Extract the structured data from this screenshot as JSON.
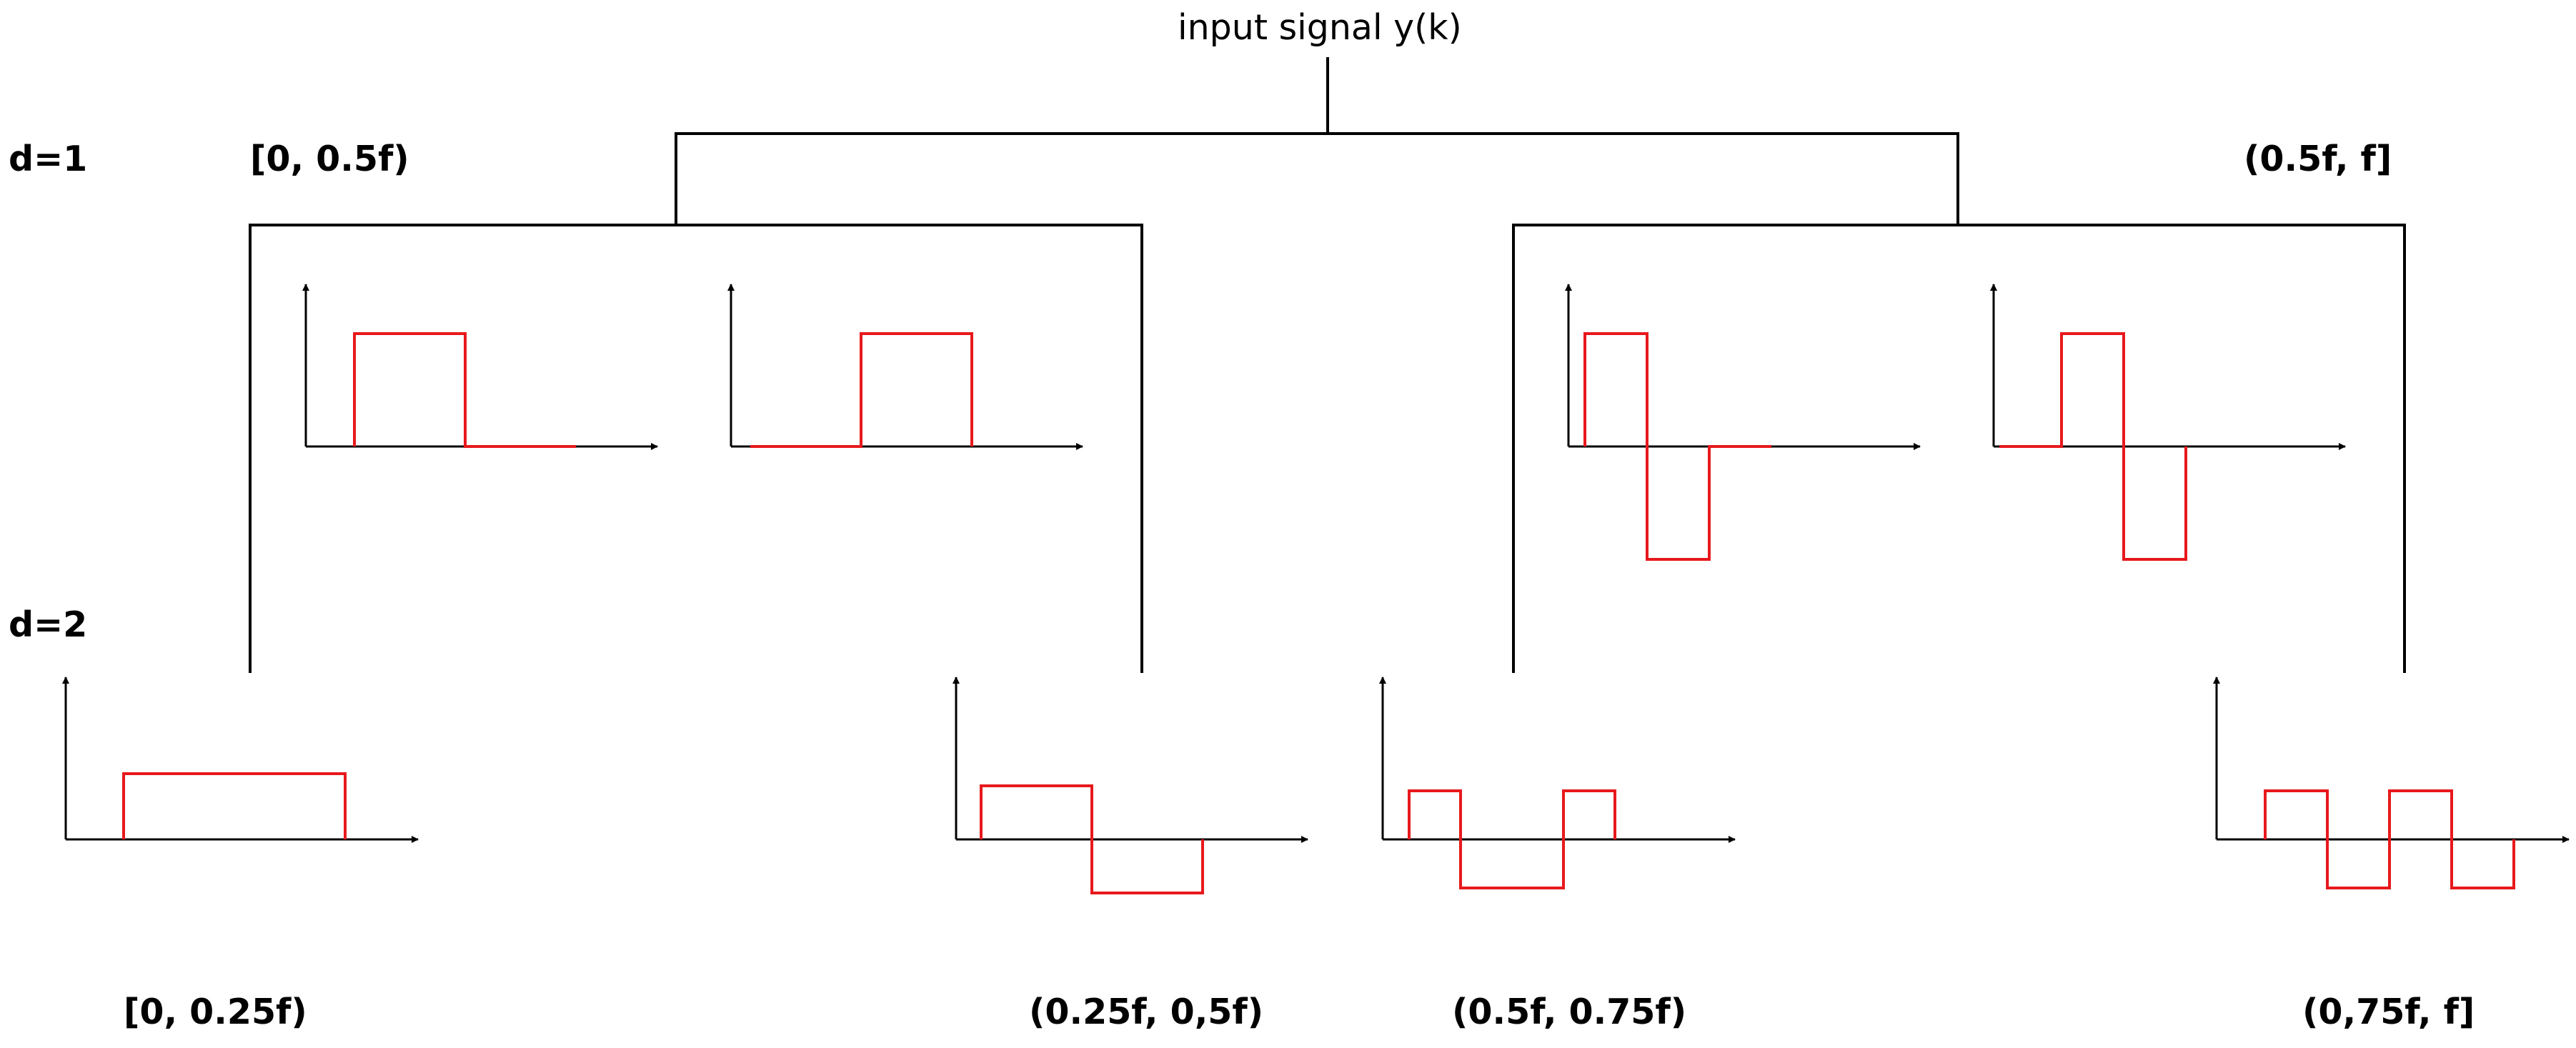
{
  "root_label": "input signal y(k)",
  "levels": [
    {
      "label": "d=1"
    },
    {
      "label": "d=2"
    }
  ],
  "bands": {
    "d1_low": "[0, 0.5f)",
    "d1_high": "(0.5f, f]",
    "d2_0": "[0, 0.25f)",
    "d2_1": "(0.25f, 0,5f)",
    "d2_2": "(0.5f, 0.75f)",
    "d2_3": "(0,75f, f]"
  },
  "colors": {
    "lines": "#000000",
    "waveform": "#e8191d",
    "background": "#ffffff"
  },
  "waveforms": {
    "d1_low_a": [
      1,
      0
    ],
    "d1_low_b": [
      0,
      1
    ],
    "d1_high_a": [
      1,
      -1,
      0
    ],
    "d1_high_b": [
      0,
      1,
      -1
    ],
    "d2_0": [
      1,
      1
    ],
    "d2_1": [
      1,
      -1
    ],
    "d2_2": [
      1,
      -1,
      -1,
      1
    ],
    "d2_3": [
      1,
      -1,
      1,
      -1
    ]
  }
}
